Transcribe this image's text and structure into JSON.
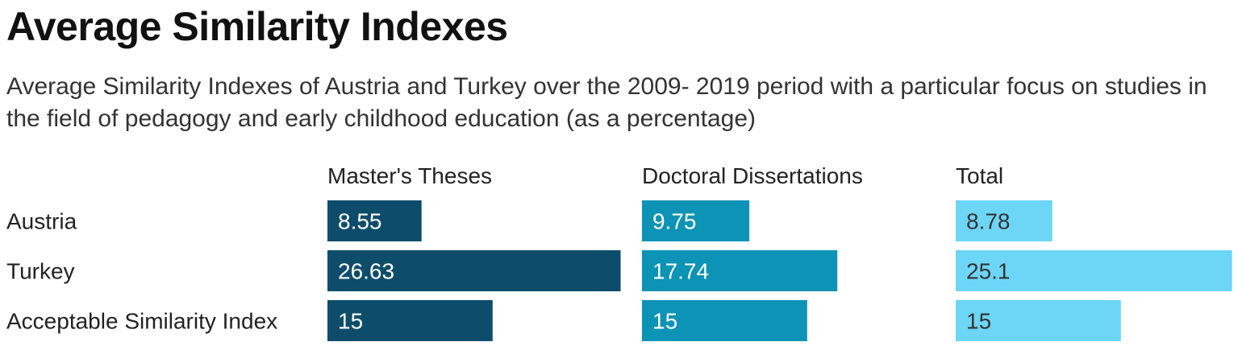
{
  "header": {
    "title": "Average Similarity Indexes",
    "subtitle": "Average Similarity Indexes of Austria and Turkey over the 2009- 2019 period with a particular focus on studies in the field of pedagogy and early childhood education (as a percentage)"
  },
  "chart_data": {
    "type": "bar",
    "orientation": "horizontal",
    "layout": "small-multiples",
    "title": "Average Similarity Indexes",
    "subtitle": "Average Similarity Indexes of Austria and Turkey over the 2009- 2019 period with a particular focus on studies in the field of pedagogy and early childhood education (as a percentage)",
    "categories": [
      "Austria",
      "Turkey",
      "Acceptable Similarity Index"
    ],
    "series": [
      {
        "name": "Master's Theses",
        "values": [
          8.55,
          26.63,
          15
        ],
        "color": "#0d4d6b"
      },
      {
        "name": "Doctoral Dissertations",
        "values": [
          9.75,
          17.74,
          15
        ],
        "color": "#0c93b5"
      },
      {
        "name": "Total",
        "values": [
          8.78,
          25.1,
          15
        ],
        "color": "#6dd6f7"
      }
    ],
    "value_labels": [
      "8.55",
      "26.63",
      "15",
      "9.75",
      "17.74",
      "15",
      "8.78",
      "25.1",
      "15"
    ],
    "grid": false,
    "legend": "none"
  }
}
